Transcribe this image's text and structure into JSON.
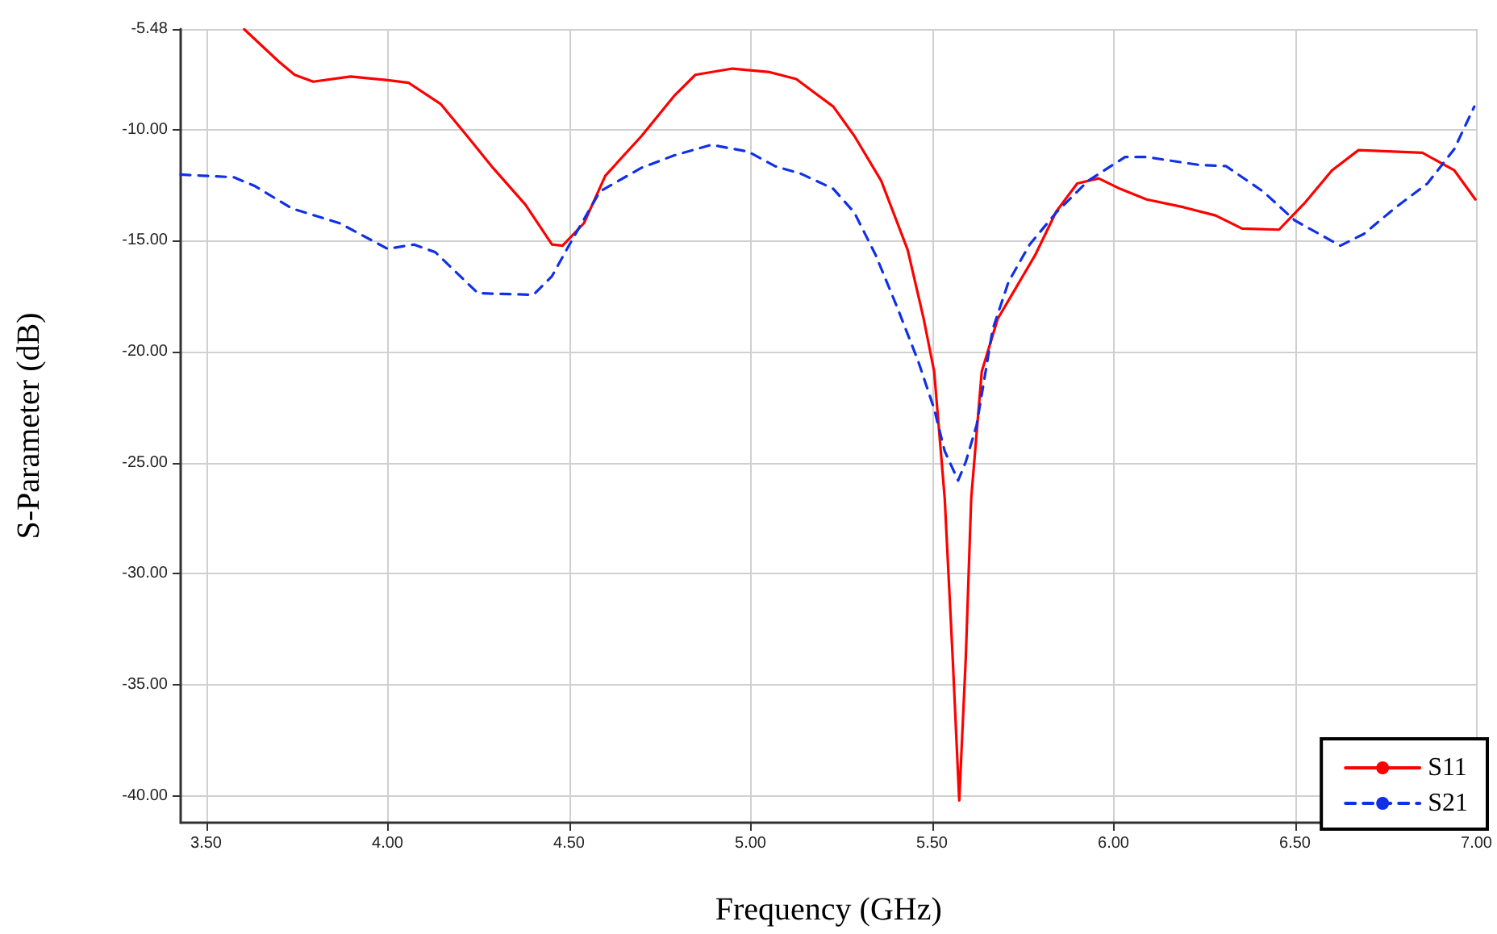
{
  "chart_data": {
    "type": "line",
    "xlabel": "Frequency (GHz)",
    "ylabel": "S-Parameter (dB)",
    "xlim": [
      3.43,
      7.0
    ],
    "ylim": [
      -41.2,
      -5.48
    ],
    "xticks": [
      {
        "value": 3.5,
        "label": "3.50"
      },
      {
        "value": 4.0,
        "label": "4.00"
      },
      {
        "value": 4.5,
        "label": "4.50"
      },
      {
        "value": 5.0,
        "label": "5.00"
      },
      {
        "value": 5.5,
        "label": "5.50"
      },
      {
        "value": 6.0,
        "label": "6.00"
      },
      {
        "value": 6.5,
        "label": "6.50"
      },
      {
        "value": 7.0,
        "label": "7.00"
      }
    ],
    "yticks": [
      {
        "value": -40,
        "label": "-40.00"
      },
      {
        "value": -35,
        "label": "-35.00"
      },
      {
        "value": -30,
        "label": "-30.00"
      },
      {
        "value": -25,
        "label": "-25.00"
      },
      {
        "value": -20,
        "label": "-20.00"
      },
      {
        "value": -15,
        "label": "-15.00"
      },
      {
        "value": -10,
        "label": "-10.00"
      },
      {
        "value": -5.48,
        "label": "-5.48"
      }
    ],
    "grid": true,
    "legend": "bottom right",
    "marker": "none",
    "series": [
      {
        "name": "S11",
        "color": "#ff0000",
        "line_style": "solid",
        "x": [
          3.605,
          3.7,
          3.744,
          3.795,
          3.898,
          4.0,
          4.058,
          4.146,
          4.219,
          4.29,
          4.38,
          4.453,
          4.482,
          4.541,
          4.6,
          4.7,
          4.789,
          4.848,
          4.95,
          5.053,
          5.126,
          5.228,
          5.286,
          5.36,
          5.433,
          5.477,
          5.506,
          5.535,
          5.557,
          5.575,
          5.593,
          5.608,
          5.637,
          5.681,
          5.725,
          5.784,
          5.842,
          5.9,
          5.959,
          6.018,
          6.091,
          6.193,
          6.281,
          6.354,
          6.456,
          6.529,
          6.602,
          6.675,
          6.851,
          6.939,
          6.997
        ],
        "values": [
          -5.49,
          -6.94,
          -7.54,
          -7.85,
          -7.62,
          -7.78,
          -7.9,
          -8.85,
          -10.29,
          -11.72,
          -13.39,
          -15.18,
          -15.23,
          -14.22,
          -12.08,
          -10.29,
          -8.5,
          -7.54,
          -7.26,
          -7.42,
          -7.73,
          -8.97,
          -10.29,
          -12.31,
          -15.42,
          -18.52,
          -20.9,
          -26.6,
          -33.8,
          -40.2,
          -33.8,
          -26.6,
          -20.9,
          -18.52,
          -17.3,
          -15.66,
          -13.7,
          -12.43,
          -12.2,
          -12.67,
          -13.15,
          -13.5,
          -13.87,
          -14.46,
          -14.51,
          -13.27,
          -11.84,
          -10.93,
          -11.05,
          -11.84,
          -13.15
        ]
      },
      {
        "name": "S21",
        "color": "#1030e8",
        "line_style": "dashed",
        "x": [
          3.43,
          3.576,
          3.635,
          3.737,
          3.868,
          4.0,
          4.073,
          4.132,
          4.249,
          4.402,
          4.453,
          4.497,
          4.585,
          4.7,
          4.789,
          4.892,
          4.994,
          5.067,
          5.14,
          5.228,
          5.286,
          5.345,
          5.404,
          5.462,
          5.506,
          5.535,
          5.572,
          5.593,
          5.623,
          5.667,
          5.711,
          5.769,
          5.842,
          5.93,
          6.032,
          6.091,
          6.237,
          6.31,
          6.412,
          6.5,
          6.625,
          6.69,
          6.778,
          6.865,
          6.939,
          6.994
        ],
        "values": [
          -12.03,
          -12.15,
          -12.55,
          -13.56,
          -14.22,
          -15.37,
          -15.18,
          -15.53,
          -17.37,
          -17.44,
          -16.6,
          -15.3,
          -12.79,
          -11.72,
          -11.17,
          -10.69,
          -11.0,
          -11.65,
          -12.0,
          -12.67,
          -13.74,
          -15.66,
          -18.0,
          -20.43,
          -22.58,
          -24.48,
          -25.8,
          -24.96,
          -23.3,
          -19.0,
          -16.85,
          -15.18,
          -13.74,
          -12.31,
          -11.24,
          -11.24,
          -11.6,
          -11.65,
          -12.79,
          -14.1,
          -15.23,
          -14.7,
          -13.5,
          -12.43,
          -10.88,
          -8.97
        ]
      }
    ]
  }
}
